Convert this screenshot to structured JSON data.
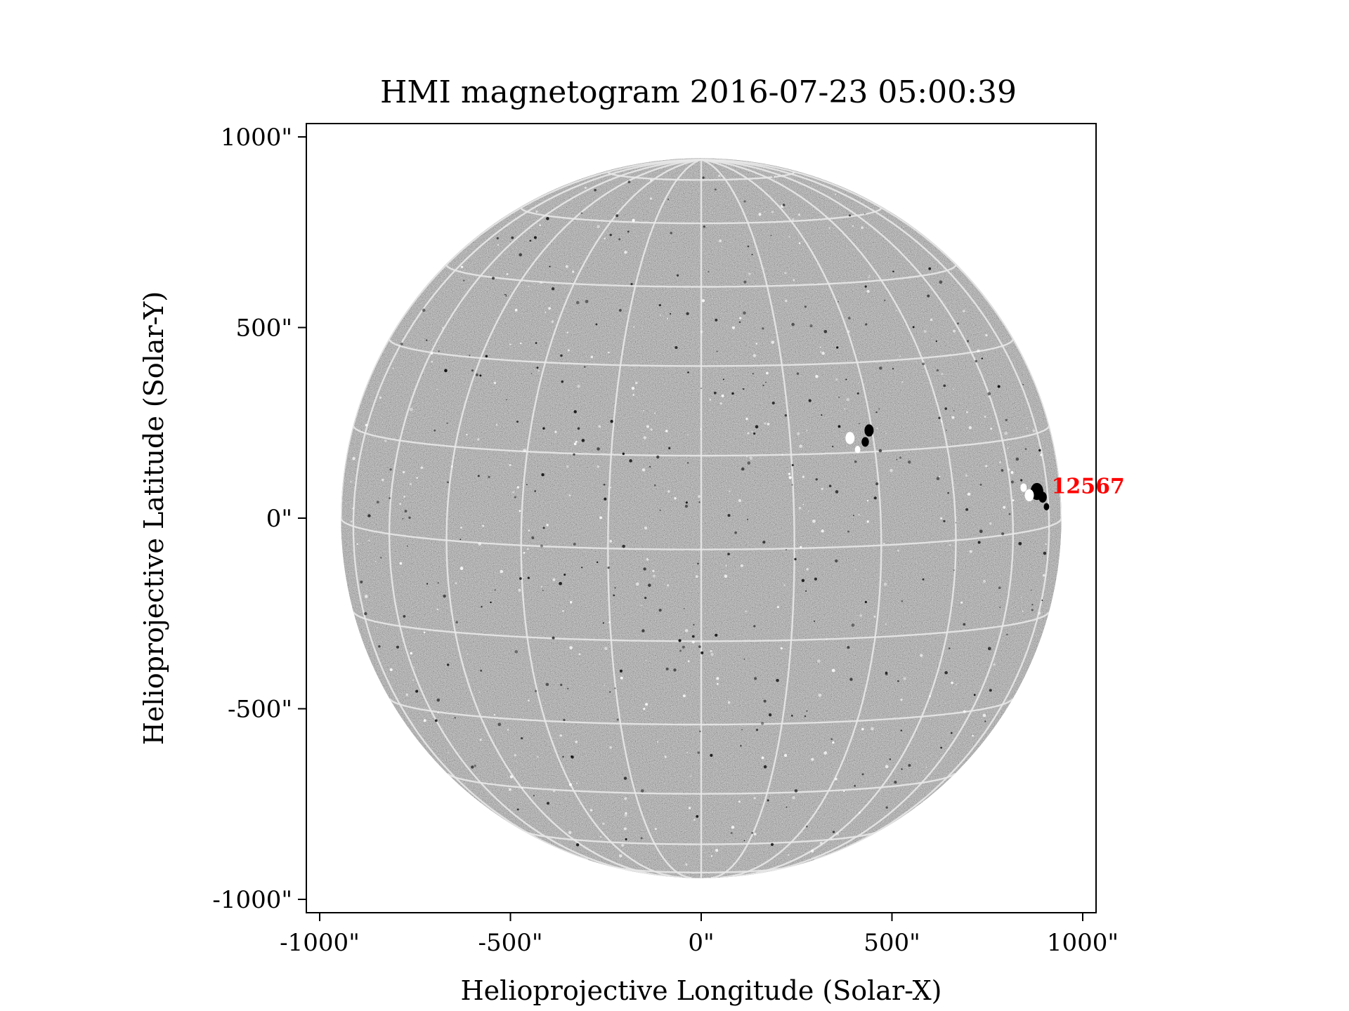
{
  "figure": {
    "title": "HMI magnetogram 2016-07-23 05:00:39",
    "xlabel": "Helioprojective Longitude (Solar-X)",
    "ylabel": "Helioprojective Latitude (Solar-Y)"
  },
  "axes": {
    "units": "arcsec",
    "xlim": [
      -1035,
      1035
    ],
    "ylim": [
      -1035,
      1035
    ],
    "xticks": [
      {
        "value": -1000,
        "label": "-1000\""
      },
      {
        "value": -500,
        "label": "-500\""
      },
      {
        "value": 0,
        "label": "0\""
      },
      {
        "value": 500,
        "label": "500\""
      },
      {
        "value": 1000,
        "label": "1000\""
      }
    ],
    "yticks": [
      {
        "value": 1000,
        "label": "1000\""
      },
      {
        "value": 500,
        "label": "500\""
      },
      {
        "value": 0,
        "label": "0\""
      },
      {
        "value": -500,
        "label": "-500\""
      },
      {
        "value": -1000,
        "label": "-1000\""
      }
    ]
  },
  "solar_disk": {
    "radius_arcsec": 944,
    "grid": {
      "latitude_spacing_deg": 15,
      "longitude_spacing_deg": 15,
      "color": "#e8e8e8"
    },
    "background_color": "#808080"
  },
  "annotations": [
    {
      "label": "12567",
      "x": 918,
      "y": 65,
      "color": "#ff0000"
    }
  ]
}
